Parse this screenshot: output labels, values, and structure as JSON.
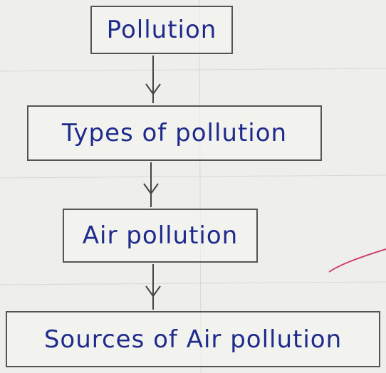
{
  "nodes": [
    {
      "label": "Pollution"
    },
    {
      "label": "Types of pollution"
    },
    {
      "label": "Air pollution"
    },
    {
      "label": "Sources of Air pollution"
    }
  ]
}
